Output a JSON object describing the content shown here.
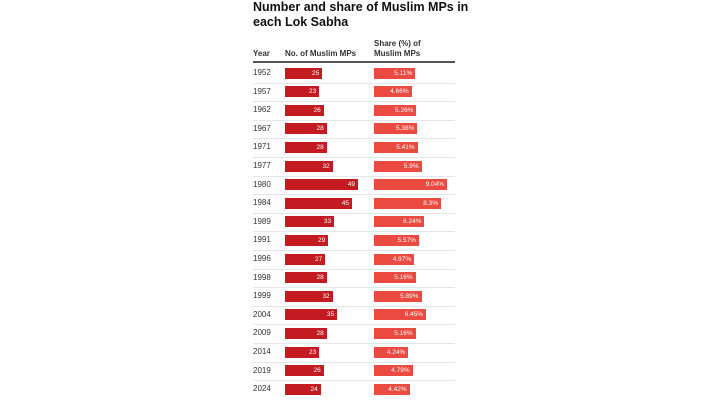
{
  "chart_data": {
    "type": "bar",
    "title": "Number and share of Muslim MPs in each Lok Sabha",
    "category_label": "Year",
    "categories": [
      "1952",
      "1957",
      "1962",
      "1967",
      "1971",
      "1977",
      "1980",
      "1984",
      "1989",
      "1991",
      "1996",
      "1998",
      "1999",
      "2004",
      "2009",
      "2014",
      "2019",
      "2024"
    ],
    "series": [
      {
        "name": "No. of Muslim MPs",
        "color": "#c41a21",
        "values": [
          25,
          23,
          26,
          28,
          28,
          32,
          49,
          45,
          33,
          29,
          27,
          28,
          32,
          35,
          28,
          23,
          26,
          24
        ]
      },
      {
        "name": "Share (%) of Muslim MPs",
        "color": "#ea4a40",
        "values": [
          5.11,
          4.66,
          5.26,
          5.38,
          5.41,
          5.9,
          9.04,
          8.3,
          6.24,
          5.57,
          4.97,
          5.16,
          5.89,
          6.45,
          5.16,
          4.24,
          4.79,
          4.42
        ],
        "value_labels": [
          "5.11%",
          "4.66%",
          "5.26%",
          "5.38%",
          "5.41%",
          "5.9%",
          "9.04%",
          "8.3%",
          "6.24%",
          "5.57%",
          "4.97%",
          "5.16%",
          "5.89%",
          "6.45%",
          "5.16%",
          "4.24%",
          "4.79%",
          "4.42%"
        ]
      }
    ]
  }
}
